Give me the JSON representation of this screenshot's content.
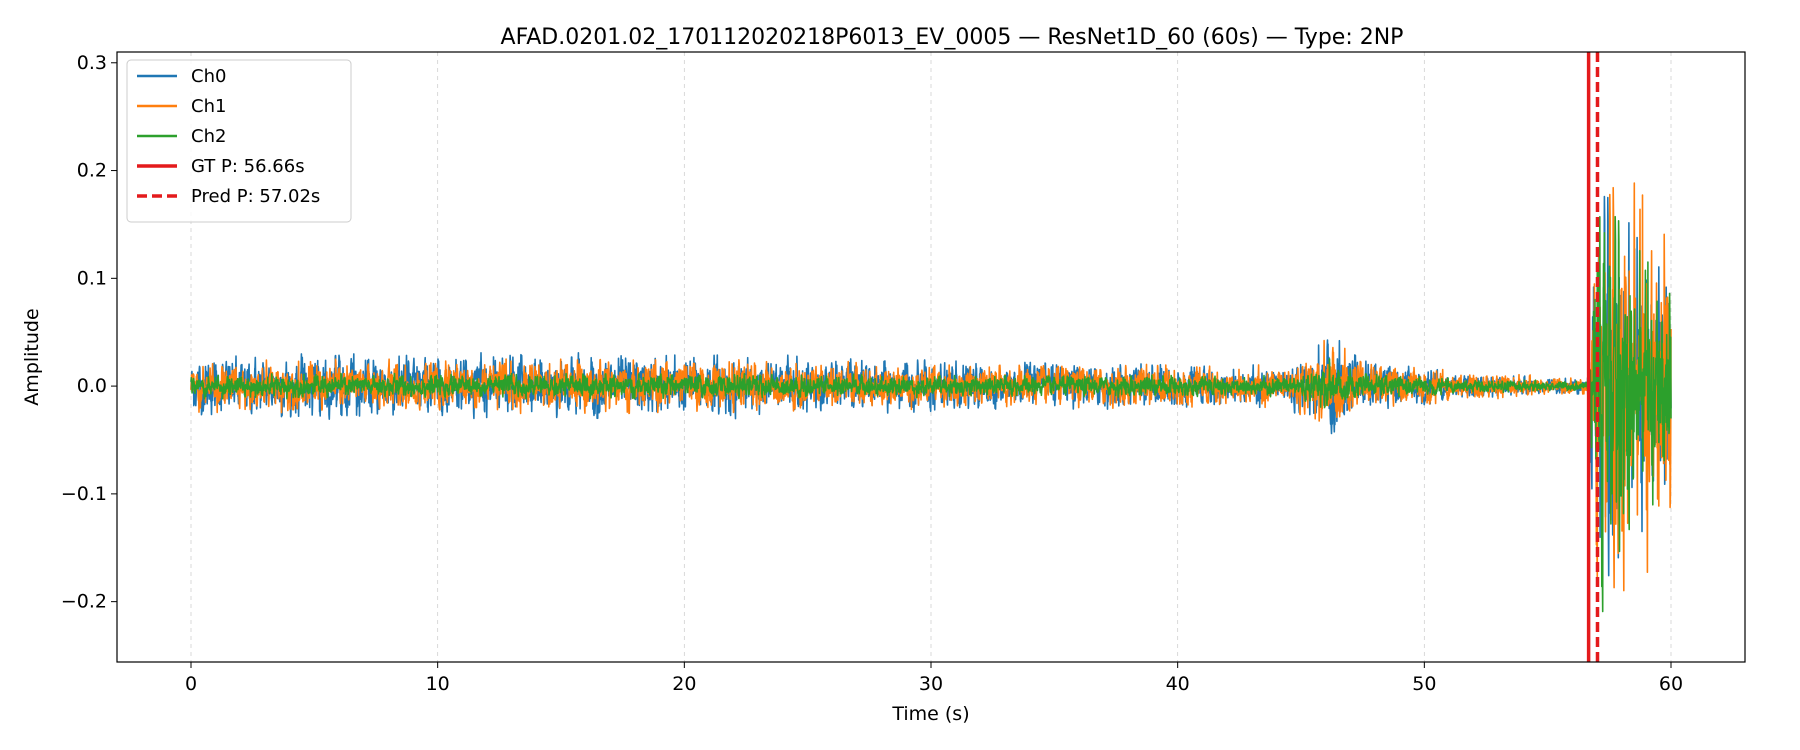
{
  "chart_data": {
    "type": "line",
    "title": "AFAD.0201.02_170112020218P6013_EV_0005 — ResNet1D_60 (60s) — Type: 2NP",
    "xlabel": "Time (s)",
    "ylabel": "Amplitude",
    "xlim": [
      -3,
      63
    ],
    "ylim": [
      -0.256,
      0.31
    ],
    "xticks": [
      0,
      10,
      20,
      30,
      40,
      50,
      60
    ],
    "yticks": [
      -0.2,
      -0.1,
      0.0,
      0.1,
      0.2,
      0.3
    ],
    "xtick_labels": [
      "0",
      "10",
      "20",
      "30",
      "40",
      "50",
      "60"
    ],
    "ytick_labels": [
      "−0.2",
      "−0.1",
      "0.0",
      "0.1",
      "0.2",
      "0.3"
    ],
    "grid": "x-dashed",
    "legend_position": "top-left",
    "duration_s": 60,
    "series": [
      {
        "name": "Ch0",
        "color": "#1f77b4",
        "envelope": [
          [
            0,
            0.03
          ],
          [
            10,
            0.032
          ],
          [
            20,
            0.032
          ],
          [
            30,
            0.025
          ],
          [
            40,
            0.02
          ],
          [
            44,
            0.02
          ],
          [
            45.5,
            0.03
          ],
          [
            46.2,
            0.075
          ],
          [
            46.6,
            0.04
          ],
          [
            47.5,
            0.025
          ],
          [
            51,
            0.015
          ],
          [
            52,
            0.012
          ],
          [
            53,
            0.01
          ],
          [
            56.6,
            0.008
          ],
          [
            57.0,
            0.22
          ],
          [
            57.5,
            0.2
          ],
          [
            58.5,
            0.15
          ],
          [
            59.5,
            0.13
          ],
          [
            60,
            0.13
          ]
        ]
      },
      {
        "name": "Ch1",
        "color": "#ff7f0e",
        "envelope": [
          [
            0,
            0.025
          ],
          [
            10,
            0.026
          ],
          [
            20,
            0.026
          ],
          [
            30,
            0.022
          ],
          [
            40,
            0.02
          ],
          [
            44,
            0.02
          ],
          [
            45.5,
            0.03
          ],
          [
            46.2,
            0.06
          ],
          [
            46.6,
            0.04
          ],
          [
            47.5,
            0.022
          ],
          [
            51,
            0.016
          ],
          [
            53,
            0.012
          ],
          [
            56.6,
            0.008
          ],
          [
            57.0,
            0.2
          ],
          [
            58.0,
            0.22
          ],
          [
            58.5,
            0.2
          ],
          [
            59.5,
            0.17
          ],
          [
            60,
            0.16
          ]
        ]
      },
      {
        "name": "Ch2",
        "color": "#2ca02c",
        "envelope": [
          [
            0,
            0.012
          ],
          [
            10,
            0.012
          ],
          [
            20,
            0.012
          ],
          [
            30,
            0.011
          ],
          [
            40,
            0.01
          ],
          [
            44,
            0.01
          ],
          [
            45.5,
            0.015
          ],
          [
            46.2,
            0.03
          ],
          [
            46.6,
            0.02
          ],
          [
            47.5,
            0.012
          ],
          [
            51,
            0.008
          ],
          [
            53,
            0.006
          ],
          [
            56.6,
            0.005
          ],
          [
            57.0,
            0.26
          ],
          [
            57.5,
            0.2
          ],
          [
            58.5,
            0.14
          ],
          [
            59.5,
            0.11
          ],
          [
            60,
            0.1
          ]
        ]
      }
    ],
    "markers": [
      {
        "name": "GT P: 56.66s",
        "x": 56.66,
        "color": "#e41a1c",
        "style": "solid"
      },
      {
        "name": "Pred P: 57.02s",
        "x": 57.02,
        "color": "#e41a1c",
        "style": "dashed"
      }
    ]
  }
}
